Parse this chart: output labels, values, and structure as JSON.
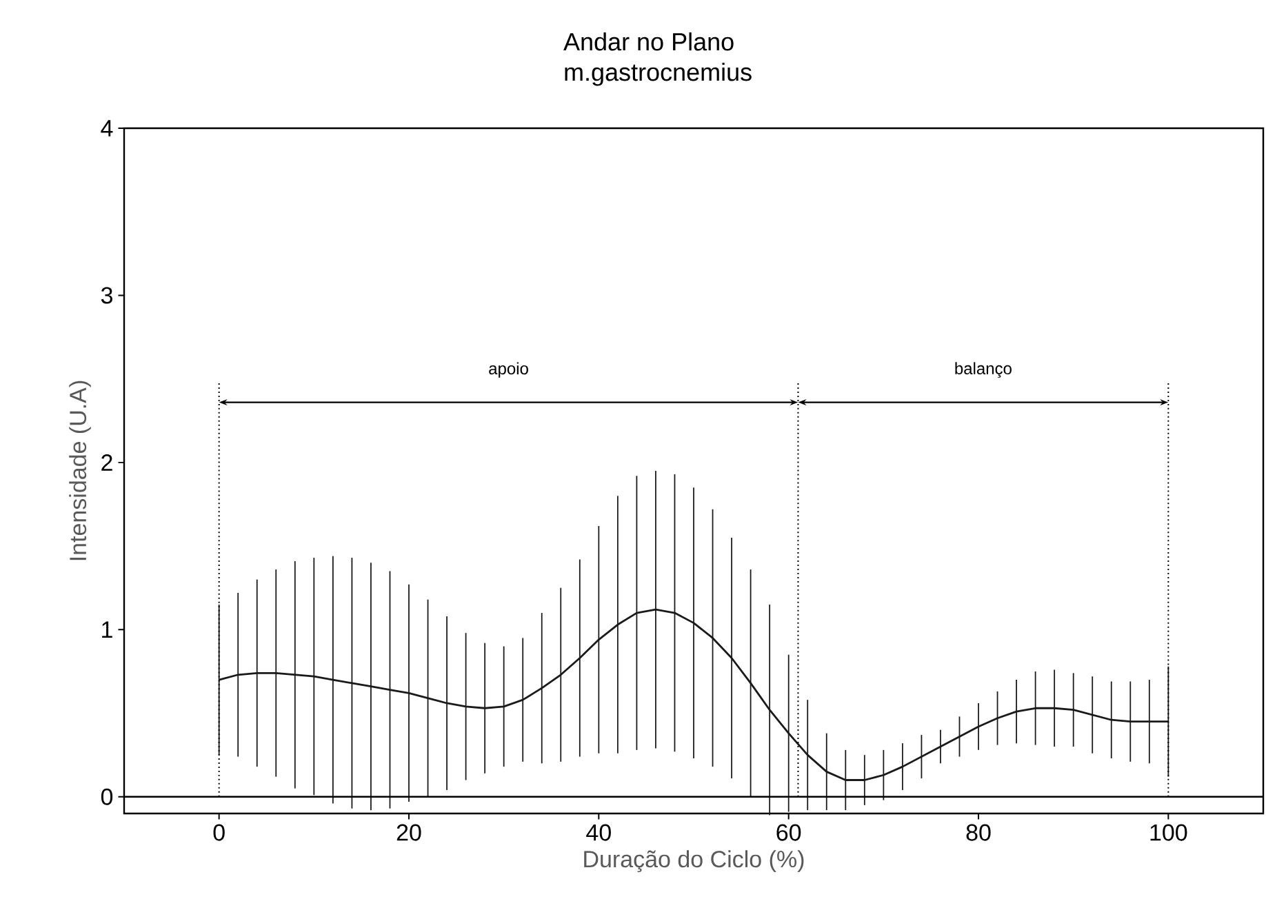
{
  "chart_data": {
    "type": "line",
    "title": "Andar no Plano",
    "subtitle": "m.gastrocnemius",
    "xlabel": "Duração do Ciclo (%)",
    "ylabel": "Intensidade (U.A)",
    "x": [
      0,
      2,
      4,
      6,
      8,
      10,
      12,
      14,
      16,
      18,
      20,
      22,
      24,
      26,
      28,
      30,
      32,
      34,
      36,
      38,
      40,
      42,
      44,
      46,
      48,
      50,
      52,
      54,
      56,
      58,
      60,
      62,
      64,
      66,
      68,
      70,
      72,
      74,
      76,
      78,
      80,
      82,
      84,
      86,
      88,
      90,
      92,
      94,
      96,
      98,
      100
    ],
    "series": [
      {
        "color": "#1a1a1a",
        "values": [
          0.7,
          0.73,
          0.74,
          0.74,
          0.73,
          0.72,
          0.7,
          0.68,
          0.66,
          0.64,
          0.62,
          0.59,
          0.56,
          0.54,
          0.53,
          0.54,
          0.58,
          0.65,
          0.73,
          0.83,
          0.94,
          1.03,
          1.1,
          1.12,
          1.1,
          1.04,
          0.95,
          0.83,
          0.68,
          0.52,
          0.38,
          0.25,
          0.15,
          0.1,
          0.1,
          0.13,
          0.18,
          0.24,
          0.3,
          0.36,
          0.42,
          0.47,
          0.51,
          0.53,
          0.53,
          0.52,
          0.49,
          0.46,
          0.45,
          0.45,
          0.45
        ],
        "errors": [
          0.45,
          0.49,
          0.56,
          0.62,
          0.68,
          0.71,
          0.74,
          0.75,
          0.74,
          0.71,
          0.65,
          0.59,
          0.52,
          0.44,
          0.39,
          0.36,
          0.37,
          0.45,
          0.52,
          0.59,
          0.68,
          0.77,
          0.82,
          0.83,
          0.83,
          0.81,
          0.77,
          0.72,
          0.68,
          0.63,
          0.47,
          0.33,
          0.23,
          0.18,
          0.15,
          0.15,
          0.14,
          0.13,
          0.1,
          0.12,
          0.14,
          0.16,
          0.19,
          0.22,
          0.23,
          0.22,
          0.23,
          0.23,
          0.24,
          0.25,
          0.33
        ]
      }
    ],
    "marker": "none",
    "line_style": "solid",
    "xlim": [
      -10,
      110
    ],
    "xticks": [
      0,
      20,
      40,
      60,
      80,
      100
    ],
    "ylim": [
      -0.1,
      4
    ],
    "yticks": [
      0,
      1,
      2,
      3,
      4
    ],
    "ref_lines": [
      {
        "axis": "x",
        "value": 0,
        "line_style": "dotted"
      },
      {
        "axis": "x",
        "value": 61,
        "line_style": "dotted"
      },
      {
        "axis": "x",
        "value": 100,
        "line_style": "dotted"
      },
      {
        "axis": "y",
        "value": 0,
        "line_style": "solid"
      }
    ],
    "annotations": [
      "apoio",
      "balanço"
    ]
  }
}
